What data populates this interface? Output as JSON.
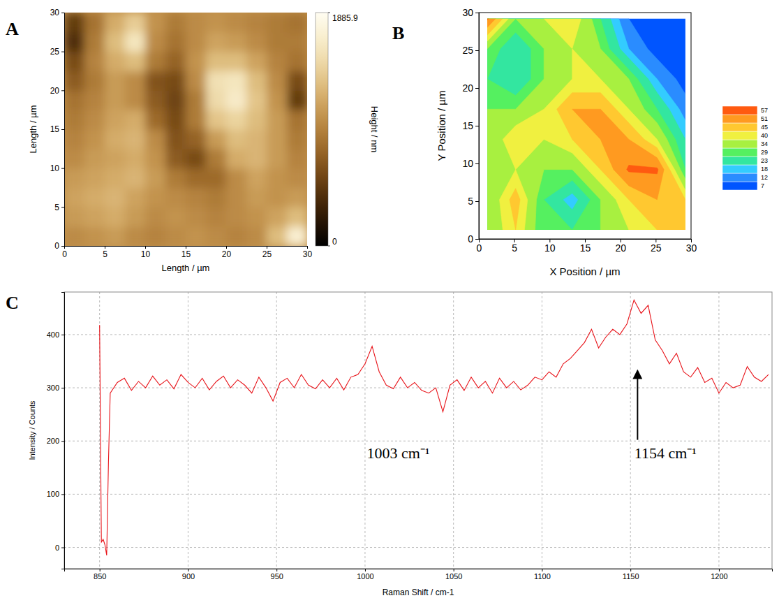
{
  "chart_data": [
    {
      "type": "heatmap",
      "panel": "A",
      "xlabel": "Length / µm",
      "ylabel": "Length / µm",
      "x": [
        1.25,
        3.75,
        6.25,
        8.75,
        11.25,
        13.75,
        16.25,
        18.75,
        21.25,
        23.75,
        26.25,
        28.75
      ],
      "y": [
        1.25,
        3.75,
        6.25,
        8.75,
        11.25,
        13.75,
        16.25,
        18.75,
        21.25,
        23.75,
        26.25,
        28.75
      ],
      "z": [
        [
          1000,
          1050,
          1100,
          1000,
          950,
          1000,
          1050,
          1000,
          950,
          1000,
          1300,
          1700
        ],
        [
          1100,
          1150,
          1200,
          1100,
          1000,
          1050,
          1000,
          950,
          1000,
          1050,
          1150,
          1300
        ],
        [
          1150,
          1200,
          1250,
          1150,
          1050,
          1000,
          950,
          900,
          1000,
          1100,
          1050,
          1100
        ],
        [
          1100,
          1150,
          1200,
          1250,
          1100,
          900,
          800,
          800,
          1000,
          1150,
          1050,
          1000
        ],
        [
          1000,
          1100,
          1150,
          1200,
          1050,
          700,
          600,
          900,
          1200,
          1250,
          1100,
          950
        ],
        [
          950,
          1050,
          1200,
          1250,
          1000,
          650,
          750,
          1100,
          1300,
          1250,
          1100,
          900
        ],
        [
          900,
          1000,
          1150,
          1200,
          800,
          600,
          900,
          1350,
          1450,
          1300,
          1100,
          850
        ],
        [
          850,
          950,
          1100,
          1000,
          700,
          550,
          900,
          1500,
          1650,
          1350,
          1050,
          500
        ],
        [
          700,
          900,
          1100,
          1000,
          650,
          600,
          1000,
          1550,
          1600,
          1300,
          1000,
          600
        ],
        [
          600,
          950,
          1200,
          1300,
          900,
          750,
          1050,
          1300,
          1300,
          1150,
          950,
          850
        ],
        [
          400,
          900,
          1300,
          1600,
          1000,
          850,
          1000,
          1150,
          1100,
          1000,
          900,
          900
        ],
        [
          500,
          850,
          1200,
          1400,
          1050,
          900,
          1000,
          1050,
          1000,
          950,
          900,
          850
        ]
      ],
      "xlim": [
        0,
        30
      ],
      "ylim": [
        0,
        30
      ],
      "xticks": [
        0,
        5,
        10,
        15,
        20,
        25,
        30
      ],
      "yticks": [
        0,
        5,
        10,
        15,
        20,
        25,
        30
      ],
      "colorbar": {
        "range": [
          0,
          1885.9
        ],
        "ticks": [
          0,
          1885.9
        ],
        "label": "Height / nm"
      }
    },
    {
      "type": "contour",
      "panel": "B",
      "xlabel": "X Position / µm",
      "ylabel": "Y Position / µm",
      "x": [
        1.2,
        5.2,
        9.2,
        13.2,
        17.2,
        21.2,
        25.2,
        29.2
      ],
      "y": [
        1.2,
        5.2,
        9.2,
        13.2,
        17.2,
        21.2,
        25.2,
        29.2
      ],
      "z": [
        [
          34,
          45,
          29,
          29,
          34,
          40,
          45,
          45
        ],
        [
          34,
          48,
          29,
          20,
          34,
          45,
          51,
          45
        ],
        [
          34,
          40,
          34,
          34,
          45,
          58,
          58,
          29
        ],
        [
          34,
          45,
          40,
          45,
          51,
          51,
          40,
          23
        ],
        [
          34,
          34,
          40,
          51,
          51,
          40,
          29,
          15
        ],
        [
          29,
          23,
          34,
          40,
          40,
          34,
          18,
          9
        ],
        [
          34,
          23,
          34,
          40,
          34,
          18,
          9,
          8
        ],
        [
          58,
          34,
          40,
          45,
          29,
          12,
          8,
          8
        ]
      ],
      "xlim": [
        0,
        30
      ],
      "ylim": [
        0,
        30
      ],
      "xticks": [
        0,
        5,
        10,
        15,
        20,
        25,
        30
      ],
      "yticks": [
        0,
        5,
        10,
        15,
        20,
        25,
        30
      ],
      "levels": [
        7,
        12,
        18,
        23,
        29,
        34,
        40,
        45,
        51,
        57
      ],
      "colors": [
        "#0055ff",
        "#2a8cff",
        "#33ccff",
        "#33e6a0",
        "#55f060",
        "#a8f040",
        "#f0f040",
        "#ffc830",
        "#ff9a20",
        "#ff5a10"
      ]
    },
    {
      "type": "line",
      "panel": "C",
      "xlabel": "Raman Shift / cm-1",
      "ylabel": "Intensity / Counts",
      "x": [
        850,
        851,
        852,
        853,
        854,
        855,
        856,
        860,
        864,
        868,
        872,
        876,
        880,
        884,
        888,
        892,
        896,
        900,
        904,
        908,
        912,
        916,
        920,
        924,
        928,
        932,
        936,
        940,
        944,
        948,
        952,
        956,
        960,
        964,
        968,
        972,
        976,
        980,
        984,
        988,
        992,
        996,
        1000,
        1004,
        1008,
        1012,
        1016,
        1020,
        1024,
        1028,
        1032,
        1036,
        1040,
        1044,
        1048,
        1052,
        1056,
        1060,
        1064,
        1068,
        1072,
        1076,
        1080,
        1084,
        1088,
        1092,
        1096,
        1100,
        1104,
        1108,
        1112,
        1116,
        1120,
        1124,
        1128,
        1132,
        1136,
        1140,
        1144,
        1148,
        1152,
        1156,
        1160,
        1164,
        1168,
        1172,
        1176,
        1180,
        1184,
        1188,
        1192,
        1196,
        1200,
        1204,
        1208,
        1212,
        1216,
        1220,
        1224,
        1228
      ],
      "series": [
        {
          "color": "#e8141a",
          "values": [
            418,
            10,
            15,
            5,
            -15,
            160,
            290,
            310,
            318,
            295,
            312,
            300,
            322,
            305,
            315,
            298,
            325,
            310,
            300,
            318,
            296,
            312,
            322,
            300,
            315,
            305,
            290,
            320,
            300,
            275,
            310,
            318,
            300,
            325,
            305,
            298,
            315,
            300,
            318,
            296,
            320,
            325,
            345,
            378,
            330,
            305,
            298,
            320,
            300,
            310,
            295,
            290,
            300,
            255,
            305,
            315,
            295,
            320,
            300,
            312,
            290,
            318,
            300,
            312,
            296,
            305,
            320,
            315,
            330,
            320,
            345,
            355,
            370,
            385,
            410,
            375,
            395,
            410,
            400,
            420,
            465,
            440,
            455,
            390,
            370,
            345,
            365,
            330,
            320,
            338,
            310,
            318,
            290,
            310,
            300,
            305,
            340,
            320,
            312,
            325
          ]
        }
      ],
      "xlim": [
        830,
        1230
      ],
      "ylim": [
        -40,
        480
      ],
      "xticks": [
        850,
        900,
        950,
        1000,
        1050,
        1100,
        1150,
        1200
      ],
      "yticks": [
        0,
        100,
        200,
        300,
        400
      ],
      "grid": true,
      "annotations": [
        {
          "text": "1003 cm⁻¹",
          "x": 1003
        },
        {
          "text": "1154 cm⁻¹",
          "x": 1154
        }
      ]
    }
  ]
}
